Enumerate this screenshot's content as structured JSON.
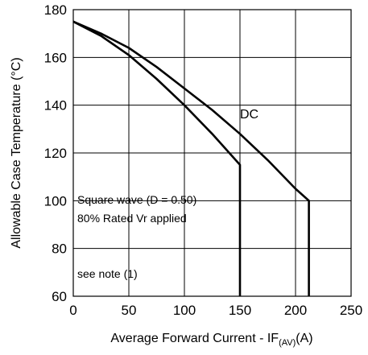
{
  "chart_data": {
    "type": "line",
    "xlabel_prefix": "Average Forward Current - I",
    "xlabel_sub1": "F",
    "xlabel_sub2": "(AV)",
    "xlabel_suffix": "(A)",
    "ylabel": "Allowable Case Temperature (°C)",
    "xlim": [
      0,
      250
    ],
    "ylim": [
      60,
      180
    ],
    "xticks": [
      0,
      50,
      100,
      150,
      200,
      250
    ],
    "yticks": [
      60,
      80,
      100,
      120,
      140,
      160,
      180
    ],
    "grid": true,
    "series": [
      {
        "name": "DC",
        "x": [
          0,
          25,
          50,
          75,
          100,
          125,
          150,
          175,
          200,
          212,
          212
        ],
        "y": [
          175,
          170,
          164,
          156,
          147,
          138,
          128,
          117,
          105,
          100,
          60
        ]
      },
      {
        "name": "Square wave (D = 0.50)",
        "x": [
          0,
          25,
          50,
          75,
          100,
          125,
          150,
          150
        ],
        "y": [
          175,
          169,
          161,
          151,
          140,
          128,
          115,
          60
        ]
      }
    ],
    "annotations": {
      "dc": "DC",
      "square_line1": "Square wave (D = 0.50)",
      "square_line2": "80% Rated Vr applied",
      "note": "see note (1)"
    }
  }
}
